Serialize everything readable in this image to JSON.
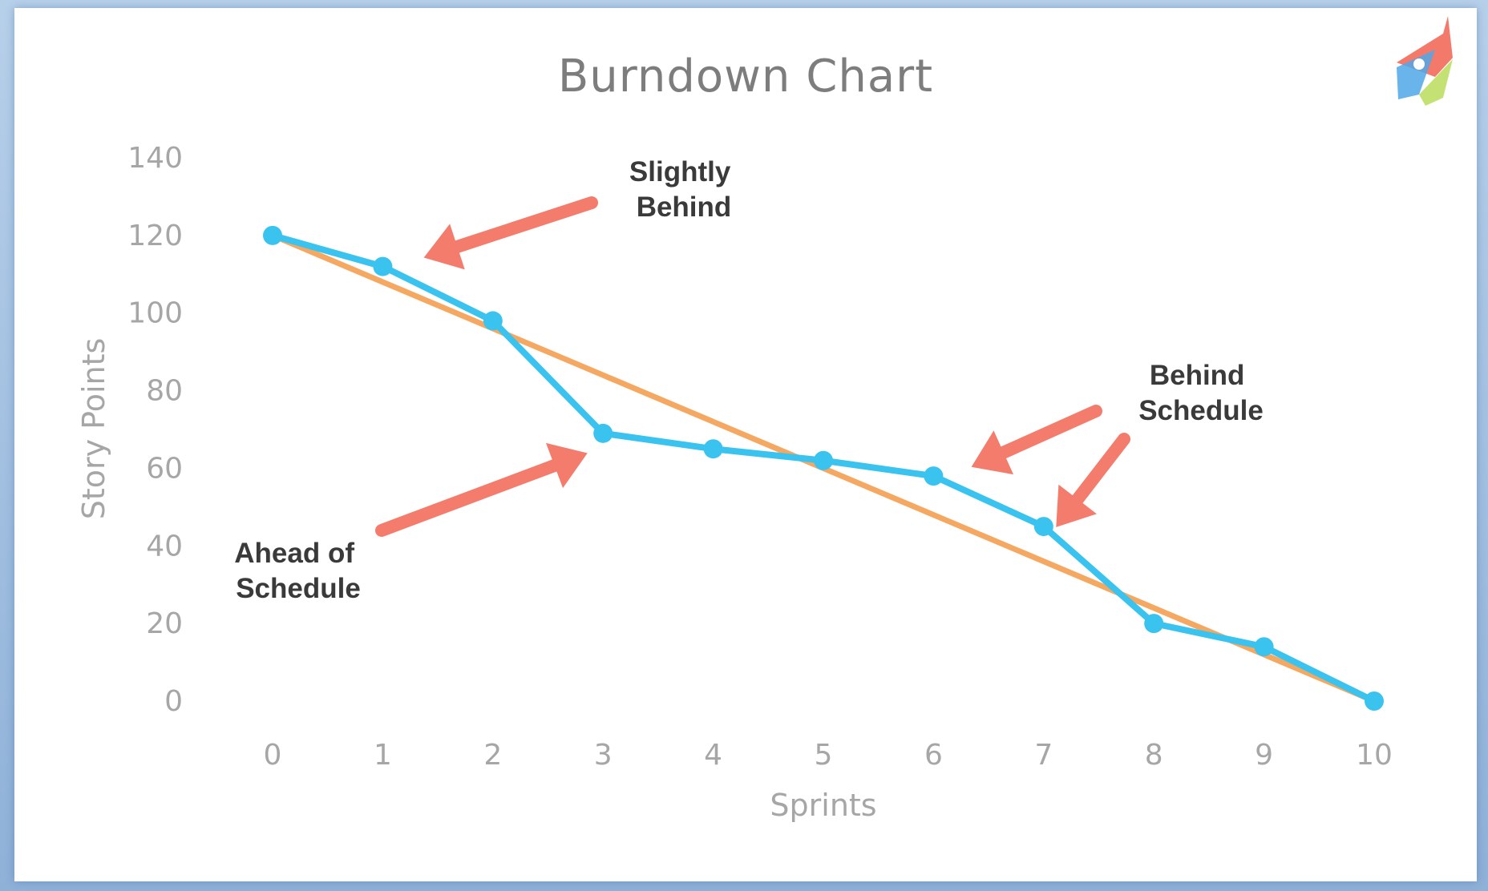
{
  "chart_data": {
    "type": "line",
    "title": "Burndown Chart",
    "xlabel": "Sprints",
    "ylabel": "Story Points",
    "xlim": [
      0,
      10
    ],
    "ylim": [
      0,
      140
    ],
    "x": [
      0,
      1,
      2,
      3,
      4,
      5,
      6,
      7,
      8,
      9,
      10
    ],
    "y_ticks": [
      0,
      20,
      40,
      60,
      80,
      100,
      120,
      140
    ],
    "grid": false,
    "series": [
      {
        "key": "ideal",
        "values": [
          120,
          108,
          96,
          84,
          72,
          60,
          48,
          36,
          24,
          12,
          0
        ],
        "color": "#f5a862",
        "markers": false
      },
      {
        "key": "actual",
        "values": [
          120,
          112,
          98,
          69,
          65,
          62,
          58,
          45,
          20,
          14,
          0
        ],
        "color": "#3ac3ef",
        "markers": true
      }
    ],
    "annotations": [
      {
        "id": "slightly-behind",
        "lines": [
          "Slightly",
          "Behind"
        ],
        "arrow_points_to": {
          "x": 1.3,
          "y": 118
        }
      },
      {
        "id": "ahead-of-schedule",
        "lines": [
          "Ahead of",
          "Schedule"
        ],
        "arrow_points_to": {
          "x": 2.8,
          "y": 67
        }
      },
      {
        "id": "behind-schedule",
        "lines": [
          "Behind",
          "Schedule"
        ],
        "arrow_points_to": [
          {
            "x": 6.3,
            "y": 62
          },
          {
            "x": 7.2,
            "y": 50
          }
        ]
      }
    ],
    "annotation_arrow_color": "#f47c6c"
  }
}
